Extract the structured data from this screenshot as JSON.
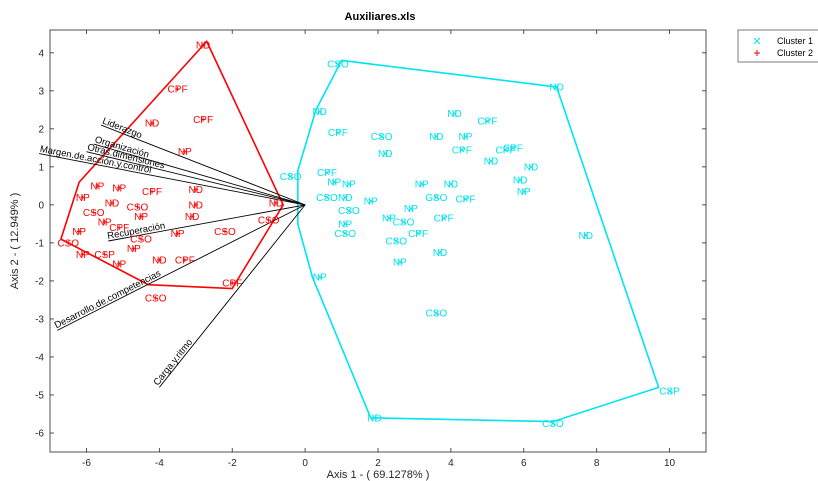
{
  "chart_data": {
    "type": "scatter",
    "title": "Auxiliares.xls",
    "xlabel": "Axis 1 - ( 69.1278% )",
    "ylabel": "Axis 2 - ( 12.949% )",
    "xlim": [
      -7,
      11
    ],
    "ylim": [
      -6.5,
      4.6
    ],
    "xticks": [
      -6,
      -4,
      -2,
      0,
      2,
      4,
      6,
      8,
      10
    ],
    "yticks": [
      -6,
      -5,
      -4,
      -3,
      -2,
      -1,
      0,
      1,
      2,
      3,
      4
    ],
    "grid": false,
    "legend_position": "outside-top-right",
    "series": [
      {
        "name": "Cluster 1",
        "marker": "x",
        "color": "#00e5ee",
        "points": [
          {
            "x": 0.9,
            "y": 3.7,
            "label": "CSO"
          },
          {
            "x": 6.9,
            "y": 3.1,
            "label": "ND"
          },
          {
            "x": 0.4,
            "y": 2.45,
            "label": "ND"
          },
          {
            "x": 4.1,
            "y": 2.4,
            "label": "ND"
          },
          {
            "x": 5,
            "y": 2.2,
            "label": "CPF"
          },
          {
            "x": 0.9,
            "y": 1.9,
            "label": "CPF"
          },
          {
            "x": 2.1,
            "y": 1.8,
            "label": "CSO"
          },
          {
            "x": 3.6,
            "y": 1.8,
            "label": "ND"
          },
          {
            "x": 4.4,
            "y": 1.8,
            "label": "NP"
          },
          {
            "x": 5.7,
            "y": 1.5,
            "label": "CPF"
          },
          {
            "x": 4.3,
            "y": 1.45,
            "label": "CPF"
          },
          {
            "x": 5.5,
            "y": 1.45,
            "label": "CPF"
          },
          {
            "x": 2.2,
            "y": 1.35,
            "label": "ND"
          },
          {
            "x": 0.6,
            "y": 0.85,
            "label": "CPF"
          },
          {
            "x": 5.1,
            "y": 1.15,
            "label": "ND"
          },
          {
            "x": 6.2,
            "y": 1,
            "label": "ND"
          },
          {
            "x": -0.4,
            "y": 0.75,
            "label": "CSO"
          },
          {
            "x": 0.8,
            "y": 0.6,
            "label": "NP"
          },
          {
            "x": 1.2,
            "y": 0.55,
            "label": "NP"
          },
          {
            "x": 3.2,
            "y": 0.55,
            "label": "NP"
          },
          {
            "x": 4,
            "y": 0.55,
            "label": "ND"
          },
          {
            "x": 5.9,
            "y": 0.65,
            "label": "ND"
          },
          {
            "x": 6,
            "y": 0.35,
            "label": "NP"
          },
          {
            "x": 0.6,
            "y": 0.2,
            "label": "CSO"
          },
          {
            "x": 1.1,
            "y": 0.2,
            "label": "ND"
          },
          {
            "x": 1.8,
            "y": 0.1,
            "label": "NP"
          },
          {
            "x": 3.6,
            "y": 0.2,
            "label": "GSO"
          },
          {
            "x": 4.4,
            "y": 0.15,
            "label": "CPF"
          },
          {
            "x": 1.2,
            "y": -0.15,
            "label": "CSO"
          },
          {
            "x": 2.9,
            "y": -0.1,
            "label": "NP"
          },
          {
            "x": 2.3,
            "y": -0.35,
            "label": "NP"
          },
          {
            "x": 2.7,
            "y": -0.45,
            "label": "CSO"
          },
          {
            "x": 3.8,
            "y": -0.35,
            "label": "CPF"
          },
          {
            "x": 1.1,
            "y": -0.5,
            "label": "NP"
          },
          {
            "x": 1.1,
            "y": -0.75,
            "label": "CSO"
          },
          {
            "x": 3.1,
            "y": -0.75,
            "label": "CPF"
          },
          {
            "x": 2.5,
            "y": -0.95,
            "label": "CSO"
          },
          {
            "x": 3.7,
            "y": -1.25,
            "label": "ND"
          },
          {
            "x": 2.6,
            "y": -1.5,
            "label": "NP"
          },
          {
            "x": 7.7,
            "y": -0.8,
            "label": "ND"
          },
          {
            "x": 0.4,
            "y": -1.9,
            "label": "NP"
          },
          {
            "x": 3.6,
            "y": -2.85,
            "label": "CSO"
          },
          {
            "x": 10,
            "y": -4.9,
            "label": "CSP"
          },
          {
            "x": 1.9,
            "y": -5.6,
            "label": "ND"
          },
          {
            "x": 6.8,
            "y": -5.75,
            "label": "CSO"
          }
        ],
        "hull": [
          [
            0.3,
            2.5
          ],
          [
            1,
            3.8
          ],
          [
            6.9,
            3.1
          ],
          [
            9.7,
            -4.8
          ],
          [
            6.8,
            -5.7
          ],
          [
            1.8,
            -5.6
          ],
          [
            0.2,
            -1.9
          ],
          [
            -0.2,
            -0.5
          ],
          [
            -0.2,
            0.9
          ]
        ]
      },
      {
        "name": "Cluster 2",
        "marker": "+",
        "color": "#ff0000",
        "points": [
          {
            "x": -2.8,
            "y": 4.2,
            "label": "ND"
          },
          {
            "x": -3.5,
            "y": 3.05,
            "label": "CPF"
          },
          {
            "x": -2.8,
            "y": 2.25,
            "label": "CPF"
          },
          {
            "x": -4.2,
            "y": 2.15,
            "label": "ND"
          },
          {
            "x": -3.3,
            "y": 1.4,
            "label": "NP"
          },
          {
            "x": -5.7,
            "y": 0.5,
            "label": "NP"
          },
          {
            "x": -5.1,
            "y": 0.45,
            "label": "NP"
          },
          {
            "x": -4.2,
            "y": 0.35,
            "label": "CPF"
          },
          {
            "x": -3,
            "y": 0.4,
            "label": "ND"
          },
          {
            "x": -6.1,
            "y": 0.2,
            "label": "NP"
          },
          {
            "x": -5.3,
            "y": 0.05,
            "label": "ND"
          },
          {
            "x": -4.6,
            "y": -0.05,
            "label": "CSO"
          },
          {
            "x": -3,
            "y": 0,
            "label": "ND"
          },
          {
            "x": -5.8,
            "y": -0.2,
            "label": "CSO"
          },
          {
            "x": -4.5,
            "y": -0.3,
            "label": "NP"
          },
          {
            "x": -3.1,
            "y": -0.3,
            "label": "ND"
          },
          {
            "x": -1,
            "y": -0.4,
            "label": "CSO"
          },
          {
            "x": -5.5,
            "y": -0.45,
            "label": "NP"
          },
          {
            "x": -5.1,
            "y": -0.6,
            "label": "CPF"
          },
          {
            "x": -6.2,
            "y": -0.7,
            "label": "NP"
          },
          {
            "x": -3.5,
            "y": -0.75,
            "label": "NP"
          },
          {
            "x": -2.2,
            "y": -0.7,
            "label": "CSO"
          },
          {
            "x": -4.5,
            "y": -0.9,
            "label": "CSO"
          },
          {
            "x": -6.5,
            "y": -1,
            "label": "CSO"
          },
          {
            "x": -4.7,
            "y": -1.15,
            "label": "NP"
          },
          {
            "x": -6.1,
            "y": -1.3,
            "label": "NP"
          },
          {
            "x": -5.5,
            "y": -1.3,
            "label": "CSP"
          },
          {
            "x": -4,
            "y": -1.45,
            "label": "ND"
          },
          {
            "x": -3.3,
            "y": -1.45,
            "label": "CPF"
          },
          {
            "x": -5.1,
            "y": -1.55,
            "label": "NP"
          },
          {
            "x": -2,
            "y": -2.05,
            "label": "CPF"
          },
          {
            "x": -4.1,
            "y": -2.45,
            "label": "CSO"
          },
          {
            "x": -0.8,
            "y": 0.05,
            "label": "ND"
          }
        ],
        "hull": [
          [
            -2.7,
            4.3
          ],
          [
            -0.6,
            0
          ],
          [
            -2,
            -2.2
          ],
          [
            -4.3,
            -2.1
          ],
          [
            -6.7,
            -0.9
          ],
          [
            -6.2,
            0.6
          ]
        ]
      }
    ],
    "vectors": [
      {
        "label": "Liderazgo",
        "x": -5.6,
        "y": 2.1
      },
      {
        "label": "Organización",
        "x": -5.8,
        "y": 1.6
      },
      {
        "label": "Otras.dimensiones",
        "x": -6,
        "y": 1.4
      },
      {
        "label": "Margen.de.acción.y.control",
        "x": -7.3,
        "y": 1.35
      },
      {
        "label": "Recuperación",
        "x": -5.4,
        "y": -0.95
      },
      {
        "label": "Desarrollo.de.competencias",
        "x": -6.8,
        "y": -3.3
      },
      {
        "label": "Carga.y.ritmo",
        "x": -4,
        "y": -4.8
      }
    ]
  }
}
